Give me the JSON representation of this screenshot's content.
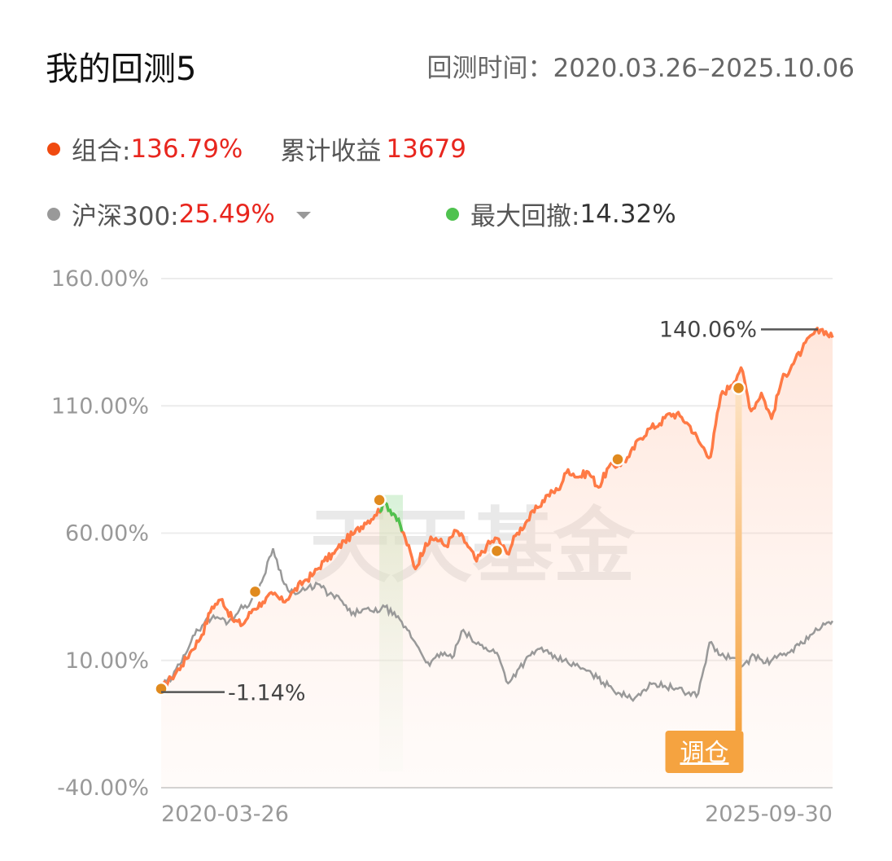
{
  "header": {
    "title": "我的回测5",
    "period": "回测时间：2020.03.26–2025.10.06"
  },
  "legend": {
    "portfolio_label": "组合:",
    "portfolio_value": "136.79%",
    "cumulative_label": "累计收益",
    "cumulative_value": "13679",
    "benchmark_label": "沪深300:",
    "benchmark_value": "25.49%",
    "drawdown_label": "最大回撤:",
    "drawdown_value": "14.32%"
  },
  "colors": {
    "portfolio": "#ff7a45",
    "benchmark": "#999999",
    "drawdown": "#4fc24f",
    "marker": "#e08a1e",
    "rebalance": "#f5a340",
    "value_red": "#e8261e"
  },
  "watermark": "天天基金",
  "rebalance_label": "调仓",
  "chart_data": {
    "type": "line",
    "ylim": [
      -40,
      160
    ],
    "yticks": [
      "160.00%",
      "110.00%",
      "60.00%",
      "10.00%",
      "-40.00%"
    ],
    "ytick_values": [
      160,
      110,
      60,
      10,
      -40
    ],
    "xticks": [
      "2020-03-26",
      "2025-09-30"
    ],
    "annotations": {
      "max": "140.06%",
      "min": "-1.14%"
    },
    "series": [
      {
        "name": "组合",
        "values": [
          -1.1,
          3,
          8,
          14,
          20,
          31,
          34,
          26,
          24,
          30,
          33,
          36,
          33,
          37,
          41,
          44,
          49,
          52,
          57,
          60,
          64,
          67,
          72,
          67,
          58,
          46,
          56,
          58,
          55,
          61,
          56,
          49,
          55,
          58,
          52,
          60,
          65,
          70,
          75,
          77,
          85,
          82,
          84,
          78,
          86,
          87,
          90,
          97,
          101,
          103,
          107,
          106,
          102,
          95,
          90,
          114,
          118,
          125,
          108,
          115,
          105,
          120,
          126,
          132,
          138,
          140.06,
          136.8
        ]
      },
      {
        "name": "沪深300",
        "values": [
          0,
          3,
          12,
          20,
          26,
          27,
          25,
          30,
          33,
          41,
          54,
          40,
          36,
          38,
          40,
          36,
          34,
          28,
          30,
          29,
          31,
          27,
          22,
          15,
          8,
          13,
          11,
          22,
          17,
          15,
          13,
          1,
          7,
          12,
          15,
          11,
          10,
          8,
          6,
          3,
          0,
          -3,
          -5,
          -2,
          1,
          0,
          -1,
          -3,
          -3,
          17,
          12,
          11,
          8,
          12,
          9,
          11,
          13,
          16,
          20,
          23,
          25.5
        ]
      }
    ],
    "markers": [
      {
        "x": 0,
        "y": -1.14
      },
      {
        "x": 0.14,
        "y": 37
      },
      {
        "x": 0.325,
        "y": 73
      },
      {
        "x": 0.5,
        "y": 53
      },
      {
        "x": 0.68,
        "y": 89
      },
      {
        "x": 0.86,
        "y": 117
      }
    ],
    "drawdown_x_range": [
      0.325,
      0.36
    ],
    "rebalance_x": 0.86
  }
}
